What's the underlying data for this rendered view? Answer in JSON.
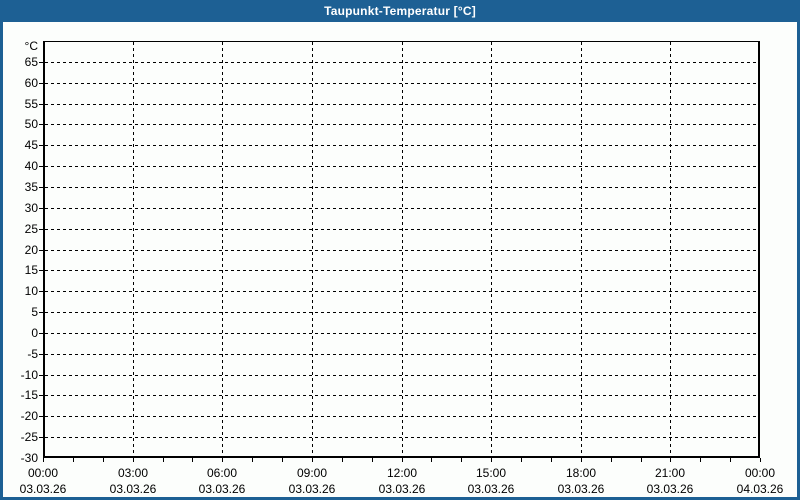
{
  "window": {
    "title": "Taupunkt-Temperatur [°C]"
  },
  "colors": {
    "titlebar": "#1d6094",
    "frame": "#1d6094",
    "title_text": "#ffffff",
    "background": "#fcfefc",
    "axis": "#000000",
    "grid": "#000000",
    "label_text": "#000000"
  },
  "chart_data": {
    "type": "line",
    "title": "Taupunkt-Temperatur [°C]",
    "ylabel": "°C",
    "xlabel": "",
    "ylim": [
      -30,
      70
    ],
    "grid": "dashed",
    "legend": "none",
    "series": [],
    "note": "empty plot - no data series drawn",
    "y_axis": {
      "unit": "°C",
      "min": -30,
      "max": 70,
      "tick_step": 5,
      "ticks": [
        {
          "label": "°C",
          "value": 70,
          "unit": true
        },
        {
          "label": "65",
          "value": 65
        },
        {
          "label": "60",
          "value": 60
        },
        {
          "label": "55",
          "value": 55
        },
        {
          "label": "50",
          "value": 50
        },
        {
          "label": "45",
          "value": 45
        },
        {
          "label": "40",
          "value": 40
        },
        {
          "label": "35",
          "value": 35
        },
        {
          "label": "30",
          "value": 30
        },
        {
          "label": "25",
          "value": 25
        },
        {
          "label": "20",
          "value": 20
        },
        {
          "label": "15",
          "value": 15
        },
        {
          "label": "10",
          "value": 10
        },
        {
          "label": "5",
          "value": 5
        },
        {
          "label": "0",
          "value": 0
        },
        {
          "label": "-5",
          "value": -5
        },
        {
          "label": "-10",
          "value": -10
        },
        {
          "label": "-15",
          "value": -15
        },
        {
          "label": "-20",
          "value": -20
        },
        {
          "label": "-25",
          "value": -25
        },
        {
          "label": "-30",
          "value": -30
        }
      ]
    },
    "x_axis": {
      "minor_tick_count": 24,
      "hours_per_major": 3,
      "major_ticks": [
        {
          "time": "00:00",
          "date": "03.03.26"
        },
        {
          "time": "03:00",
          "date": "03.03.26"
        },
        {
          "time": "06:00",
          "date": "03.03.26"
        },
        {
          "time": "09:00",
          "date": "03.03.26"
        },
        {
          "time": "12:00",
          "date": "03.03.26"
        },
        {
          "time": "15:00",
          "date": "03.03.26"
        },
        {
          "time": "18:00",
          "date": "03.03.26"
        },
        {
          "time": "21:00",
          "date": "03.03.26"
        },
        {
          "time": "00:00",
          "date": "04.03.26"
        }
      ]
    }
  }
}
